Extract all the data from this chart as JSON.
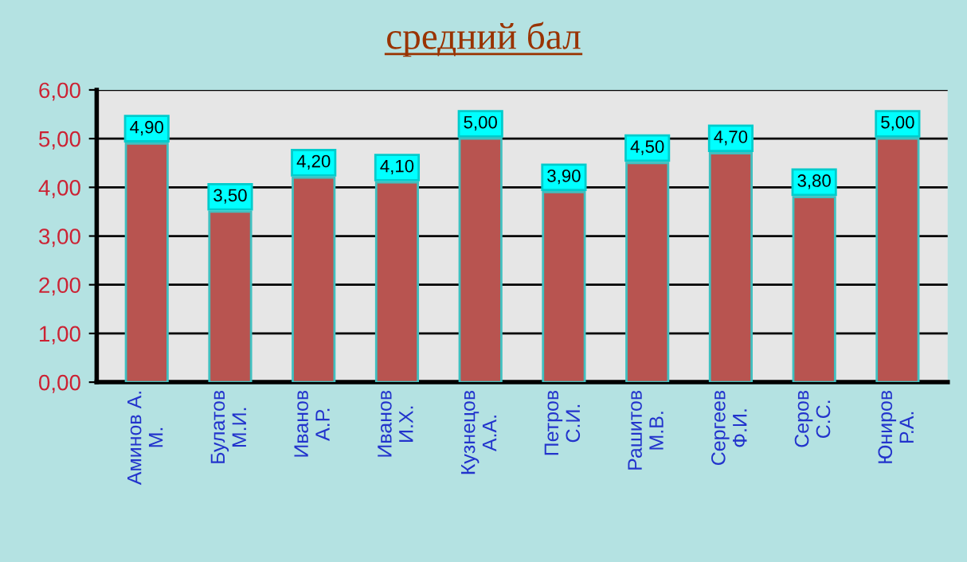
{
  "chart_data": {
    "type": "bar",
    "title": "средний бал",
    "categories": [
      "Аминов А.\nМ.",
      "Булатов\nМ.И.",
      "Иванов\nА.Р.",
      "Иванов\nИ.Х.",
      "Кузнецов\nА.А.",
      "Петров\nС.И.",
      "Рашитов\nМ.В.",
      "Сергеев\nФ.И.",
      "Серов\nС.С.",
      "Юниров\nР.А."
    ],
    "values": [
      4.9,
      3.5,
      4.2,
      4.1,
      5.0,
      3.9,
      4.5,
      4.7,
      3.8,
      5.0
    ],
    "value_labels": [
      "4,90",
      "3,50",
      "4,20",
      "4,10",
      "5,00",
      "3,90",
      "4,50",
      "4,70",
      "3,80",
      "5,00"
    ],
    "color": "#b85450",
    "ylim": [
      0,
      6
    ],
    "yticks": [
      {
        "value": 0,
        "label": "0,00"
      },
      {
        "value": 1,
        "label": "1,00"
      },
      {
        "value": 2,
        "label": "2,00"
      },
      {
        "value": 3,
        "label": "3,00"
      },
      {
        "value": 4,
        "label": "4,00"
      },
      {
        "value": 5,
        "label": "5,00"
      },
      {
        "value": 6,
        "label": "6,00"
      }
    ],
    "grid": "y"
  }
}
